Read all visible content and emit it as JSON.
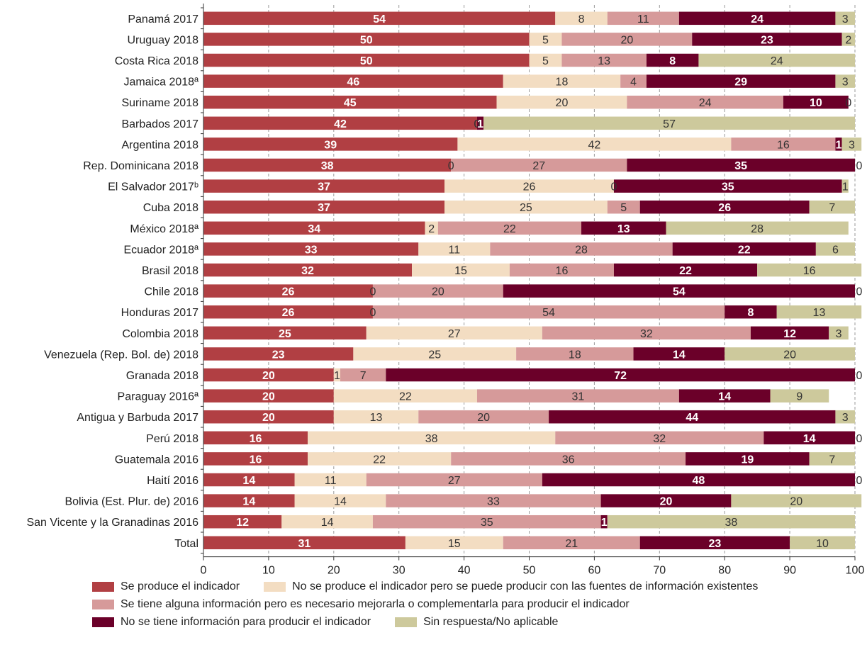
{
  "chart_data": {
    "type": "bar",
    "stacked": true,
    "orientation": "horizontal",
    "categories": [
      "Panamá 2017",
      "Uruguay 2018",
      "Costa Rica 2018",
      "Jamaica 2018ª",
      "Suriname 2018",
      "Barbados 2017",
      "Argentina 2018",
      "Rep. Dominicana 2018",
      "El Salvador 2017ᵇ",
      "Cuba 2018",
      "México 2018ª",
      "Ecuador 2018ª",
      "Brasil 2018",
      "Chile 2018",
      "Honduras 2017",
      "Colombia 2018",
      "Venezuela (Rep. Bol. de) 2018",
      "Granada 2018",
      "Paraguay 2016ª",
      "Antigua y Barbuda 2017",
      "Perú 2018",
      "Guatemala 2016",
      "Haití 2016",
      "Bolivia (Est. Plur. de) 2016",
      "San Vicente y la Granadinas 2016",
      "Total"
    ],
    "series": [
      {
        "name": "Se produce el indicador",
        "color": "#b13f43",
        "label_color": "#ffffff",
        "label_bold": true,
        "values": [
          54,
          50,
          50,
          46,
          45,
          42,
          39,
          38,
          37,
          37,
          34,
          33,
          32,
          26,
          26,
          25,
          23,
          20,
          20,
          20,
          16,
          16,
          14,
          14,
          12,
          31
        ]
      },
      {
        "name": "No se produce el indicador pero se puede producir con las fuentes de información existentes",
        "color": "#f3ddc2",
        "label_color": "#333333",
        "label_bold": false,
        "values": [
          8,
          5,
          5,
          18,
          20,
          0,
          42,
          0,
          26,
          25,
          2,
          11,
          15,
          0,
          0,
          27,
          25,
          1,
          22,
          13,
          38,
          22,
          11,
          14,
          14,
          15
        ]
      },
      {
        "name": "Se tiene alguna información pero es necesario mejorarla o complementarla para producir el indicador",
        "color": "#d69a9a",
        "label_color": "#333333",
        "label_bold": false,
        "values": [
          11,
          20,
          13,
          4,
          24,
          0,
          16,
          27,
          0,
          5,
          22,
          28,
          16,
          20,
          54,
          32,
          18,
          7,
          31,
          20,
          32,
          36,
          27,
          33,
          35,
          21
        ]
      },
      {
        "name": "No se tiene información para producir el indicador",
        "color": "#6b0029",
        "label_color": "#ffffff",
        "label_bold": true,
        "values": [
          24,
          23,
          8,
          29,
          10,
          1,
          1,
          35,
          35,
          26,
          13,
          22,
          22,
          54,
          8,
          12,
          14,
          72,
          14,
          44,
          14,
          19,
          48,
          20,
          1,
          23
        ]
      },
      {
        "name": "Sin respuesta/No aplicable",
        "color": "#cdc99c",
        "label_color": "#333333",
        "label_bold": false,
        "values": [
          3,
          2,
          24,
          3,
          0,
          57,
          3,
          0,
          1,
          7,
          28,
          6,
          16,
          0,
          13,
          3,
          20,
          0,
          9,
          3,
          0,
          7,
          0,
          20,
          38,
          10
        ]
      }
    ],
    "xlim": [
      0,
      100
    ],
    "xticks": [
      "0",
      "10",
      "20",
      "30",
      "40",
      "50",
      "60",
      "70",
      "80",
      "90",
      "100"
    ],
    "title": "",
    "xlabel": "",
    "ylabel": "",
    "grid": "vertical dashed",
    "legend_position": "bottom"
  },
  "legend_rows": [
    [
      0,
      1
    ],
    [
      2
    ],
    [
      3,
      4
    ]
  ]
}
